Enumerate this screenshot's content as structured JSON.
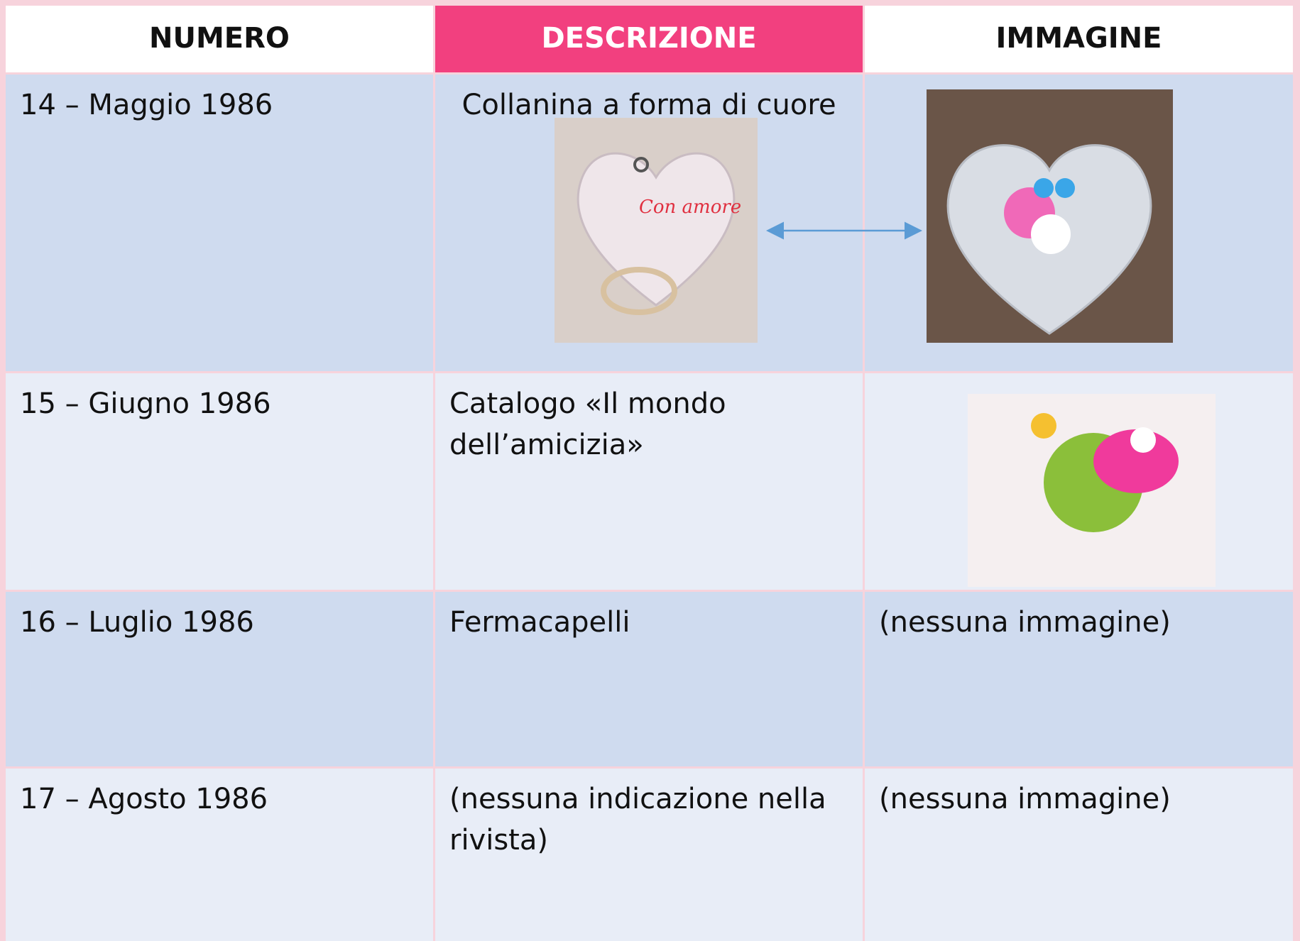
{
  "table": {
    "headers": [
      "NUMERO",
      "DESCRIZIONE",
      "IMMAGINE"
    ],
    "rows": [
      [
        "14 – Maggio 1986",
        "Collanina a forma di cuore"
      ],
      [
        "15 – Giugno 1986",
        "Catalogo «Il mondo dell’amicizia»"
      ],
      [
        "16 – Luglio 1986",
        "Fermacapelli",
        "(nessuna immagine)"
      ],
      [
        "17 – Agosto 1986",
        "(nessuna indicazione nella rivista)",
        "(nessuna immagine)"
      ]
    ]
  }
}
